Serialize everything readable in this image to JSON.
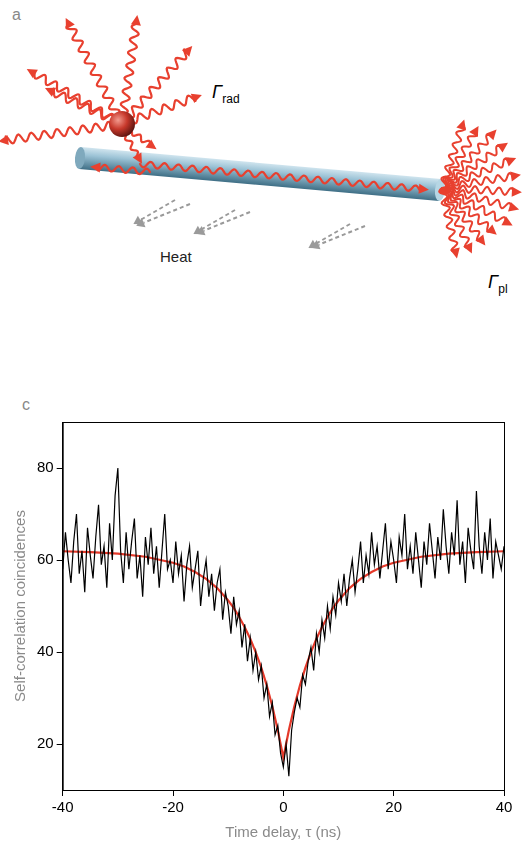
{
  "diagram": {
    "panel_label": "a",
    "labels": {
      "radiative_rate": {
        "symbol": "Γ",
        "subscript": "rad"
      },
      "plasmon_rate": {
        "symbol": "Γ",
        "subscript": "pl"
      },
      "loss": "Heat"
    }
  },
  "chart_data": {
    "type": "line",
    "panel_label": "c",
    "x_label": "Time delay, τ (ns)",
    "y_label": "Self-correlation coincidences",
    "xlim": [
      -40,
      40
    ],
    "ylim": [
      10,
      90
    ],
    "xticks": [
      -40,
      -20,
      0,
      20,
      40
    ],
    "yticks": [
      20,
      40,
      60,
      80
    ],
    "grid": false,
    "series": [
      {
        "color": "#000000",
        "line_style": "solid",
        "marker": "none",
        "x": [
          -40,
          -39.5,
          -39,
          -38.5,
          -38,
          -37.5,
          -37,
          -36.5,
          -36,
          -35.5,
          -35,
          -34.5,
          -34,
          -33.5,
          -33,
          -32.5,
          -32,
          -31.5,
          -31,
          -30.5,
          -30,
          -29.5,
          -29,
          -28.5,
          -28,
          -27.5,
          -27,
          -26.5,
          -26,
          -25.5,
          -25,
          -24.5,
          -24,
          -23.5,
          -23,
          -22.5,
          -22,
          -21.5,
          -21,
          -20.5,
          -20,
          -19.5,
          -19,
          -18.5,
          -18,
          -17.5,
          -17,
          -16.5,
          -16,
          -15.5,
          -15,
          -14.5,
          -14,
          -13.5,
          -13,
          -12.5,
          -12,
          -11.5,
          -11,
          -10.5,
          -10,
          -9.5,
          -9,
          -8.5,
          -8,
          -7.5,
          -7,
          -6.5,
          -6,
          -5.5,
          -5,
          -4.5,
          -4,
          -3.5,
          -3,
          -2.5,
          -2,
          -1.5,
          -1,
          -0.5,
          0,
          0.5,
          1,
          1.5,
          2,
          2.5,
          3,
          3.5,
          4,
          4.5,
          5,
          5.5,
          6,
          6.5,
          7,
          7.5,
          8,
          8.5,
          9,
          9.5,
          10,
          10.5,
          11,
          11.5,
          12,
          12.5,
          13,
          13.5,
          14,
          14.5,
          15,
          15.5,
          16,
          16.5,
          17,
          17.5,
          18,
          18.5,
          19,
          19.5,
          20,
          20.5,
          21,
          21.5,
          22,
          22.5,
          23,
          23.5,
          24,
          24.5,
          25,
          25.5,
          26,
          26.5,
          27,
          27.5,
          28,
          28.5,
          29,
          29.5,
          30,
          30.5,
          31,
          31.5,
          32,
          32.5,
          33,
          33.5,
          34,
          34.5,
          35,
          35.5,
          36,
          36.5,
          37,
          37.5,
          38,
          38.5,
          39,
          39.5,
          40
        ],
        "values": [
          58,
          66,
          60,
          55,
          64,
          70,
          57,
          62,
          53,
          67,
          61,
          56,
          65,
          72,
          59,
          63,
          54,
          68,
          60,
          74,
          80,
          62,
          55,
          66,
          58,
          64,
          69,
          56,
          61,
          52,
          65,
          59,
          67,
          57,
          63,
          54,
          62,
          70,
          58,
          60,
          55,
          64,
          57,
          61,
          51,
          59,
          63,
          54,
          58,
          62,
          50,
          56,
          60,
          52,
          57,
          49,
          55,
          58,
          47,
          53,
          50,
          44,
          52,
          46,
          49,
          41,
          46,
          38,
          43,
          36,
          40,
          34,
          37,
          30,
          33,
          26,
          29,
          22,
          24,
          18,
          15,
          20,
          13,
          23,
          27,
          30,
          28,
          35,
          33,
          38,
          41,
          36,
          44,
          40,
          47,
          43,
          50,
          45,
          52,
          48,
          55,
          51,
          57,
          50,
          56,
          60,
          53,
          58,
          64,
          55,
          61,
          57,
          66,
          59,
          63,
          56,
          62,
          68,
          58,
          64,
          60,
          55,
          65,
          61,
          70,
          58,
          63,
          57,
          66,
          60,
          54,
          64,
          59,
          68,
          62,
          56,
          65,
          60,
          71,
          63,
          57,
          66,
          61,
          73,
          59,
          64,
          55,
          67,
          62,
          58,
          75,
          63,
          57,
          66,
          60,
          69,
          56,
          64,
          61,
          58,
          63
        ]
      },
      {
        "color": "#e5392a",
        "line_style": "solid",
        "marker": "none",
        "x": [
          -40,
          -35,
          -30,
          -25,
          -20,
          -18,
          -16,
          -14,
          -12,
          -10,
          -9,
          -8,
          -7,
          -6,
          -5,
          -4,
          -3,
          -2,
          -1,
          0,
          1,
          2,
          3,
          4,
          5,
          6,
          7,
          8,
          9,
          10,
          12,
          14,
          16,
          18,
          20,
          25,
          30,
          35,
          40
        ],
        "values": [
          61.9,
          61.7,
          61.4,
          60.7,
          59.4,
          58.6,
          57.4,
          55.9,
          53.9,
          51.2,
          49.6,
          47.6,
          45.4,
          42.9,
          39.9,
          36.6,
          32.7,
          28.2,
          23.0,
          17.0,
          23.0,
          28.2,
          32.7,
          36.6,
          39.9,
          42.9,
          45.4,
          47.6,
          49.6,
          51.2,
          53.9,
          55.9,
          57.4,
          58.6,
          59.4,
          60.7,
          61.4,
          61.7,
          61.9
        ]
      }
    ]
  }
}
